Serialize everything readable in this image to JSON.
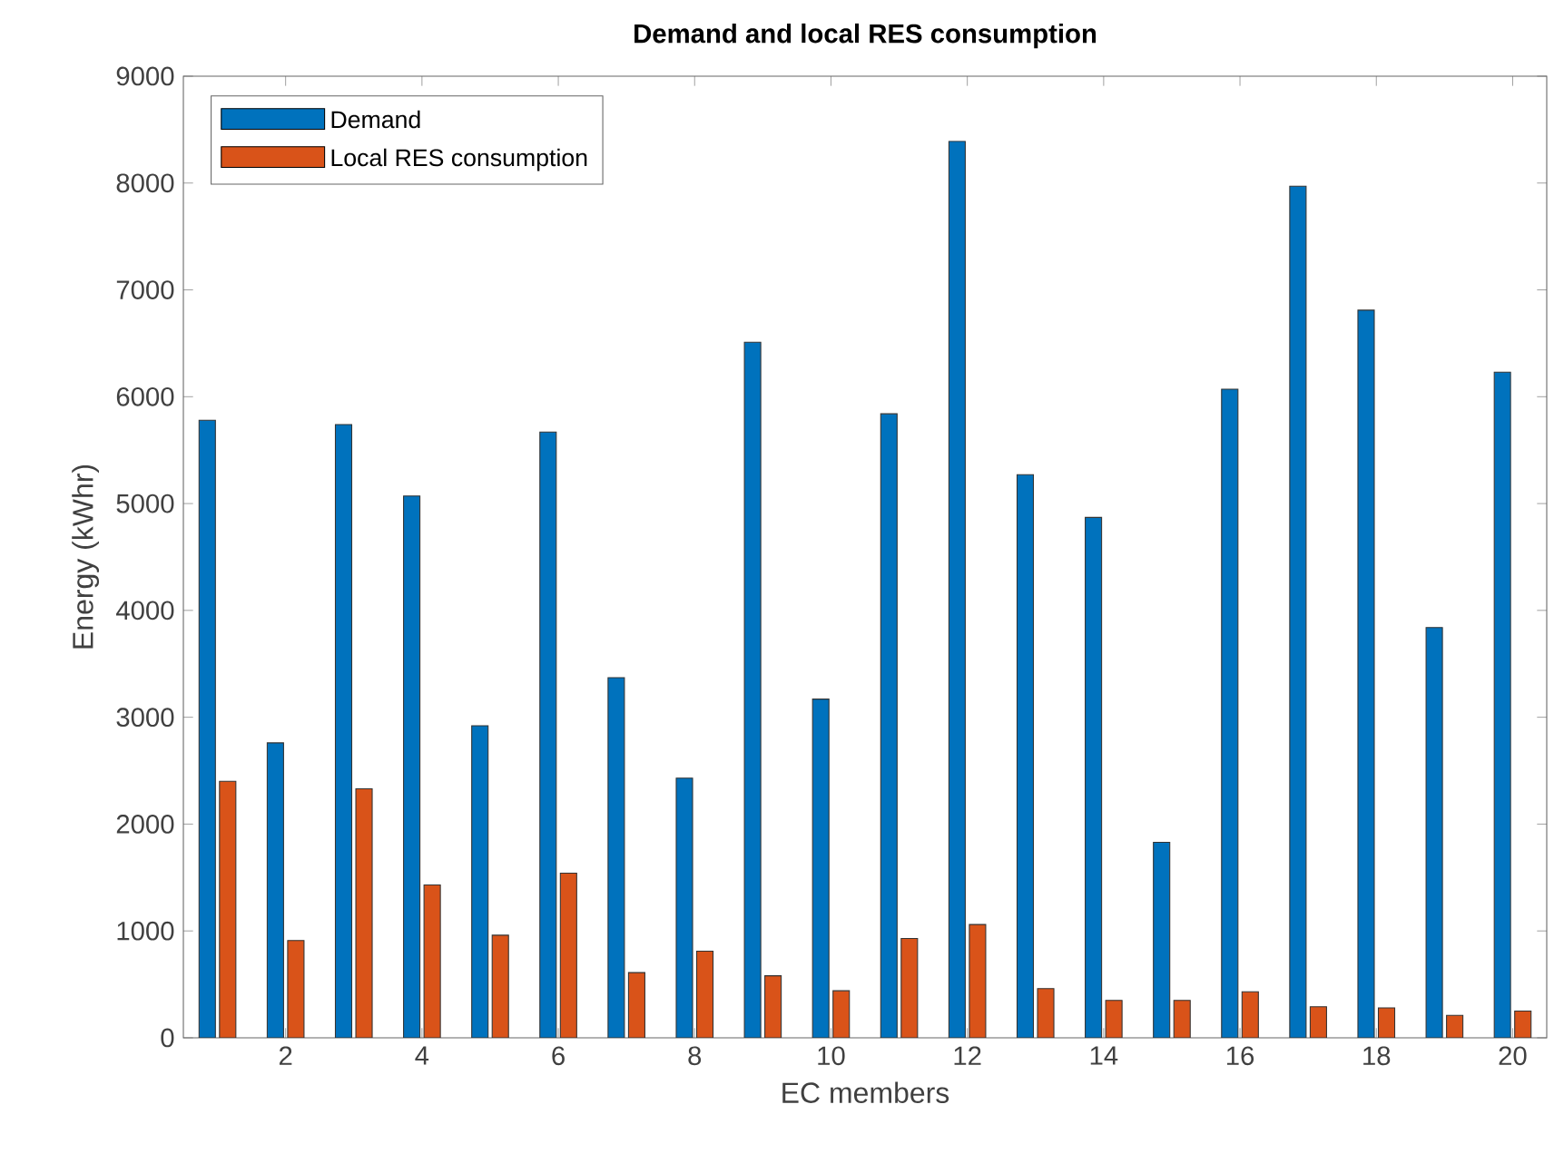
{
  "chart_data": {
    "type": "bar",
    "title": "Demand and local RES consumption",
    "xlabel": "EC members",
    "ylabel": "Energy (kWhr)",
    "x": [
      1,
      2,
      3,
      4,
      5,
      6,
      7,
      8,
      9,
      10,
      11,
      12,
      13,
      14,
      15,
      16,
      17,
      18,
      19,
      20
    ],
    "series": [
      {
        "name": "Demand",
        "color": "#0072bd",
        "values": [
          5780,
          2760,
          5740,
          5070,
          2920,
          5670,
          3370,
          2430,
          6510,
          3170,
          5840,
          8390,
          5270,
          4870,
          1830,
          6070,
          7970,
          6810,
          3840,
          6230
        ]
      },
      {
        "name": "Local RES consumption",
        "color": "#d95319",
        "values": [
          2400,
          910,
          2330,
          1430,
          960,
          1540,
          610,
          810,
          580,
          440,
          930,
          1060,
          460,
          350,
          350,
          430,
          290,
          280,
          210,
          250
        ]
      }
    ],
    "xlim": [
      0.5,
      20.5
    ],
    "xticks": [
      2,
      4,
      6,
      8,
      10,
      12,
      14,
      16,
      18,
      20
    ],
    "ylim": [
      0,
      9000
    ],
    "yticks": [
      0,
      1000,
      2000,
      3000,
      4000,
      5000,
      6000,
      7000,
      8000,
      9000
    ],
    "grid": false,
    "legend": "top left"
  }
}
